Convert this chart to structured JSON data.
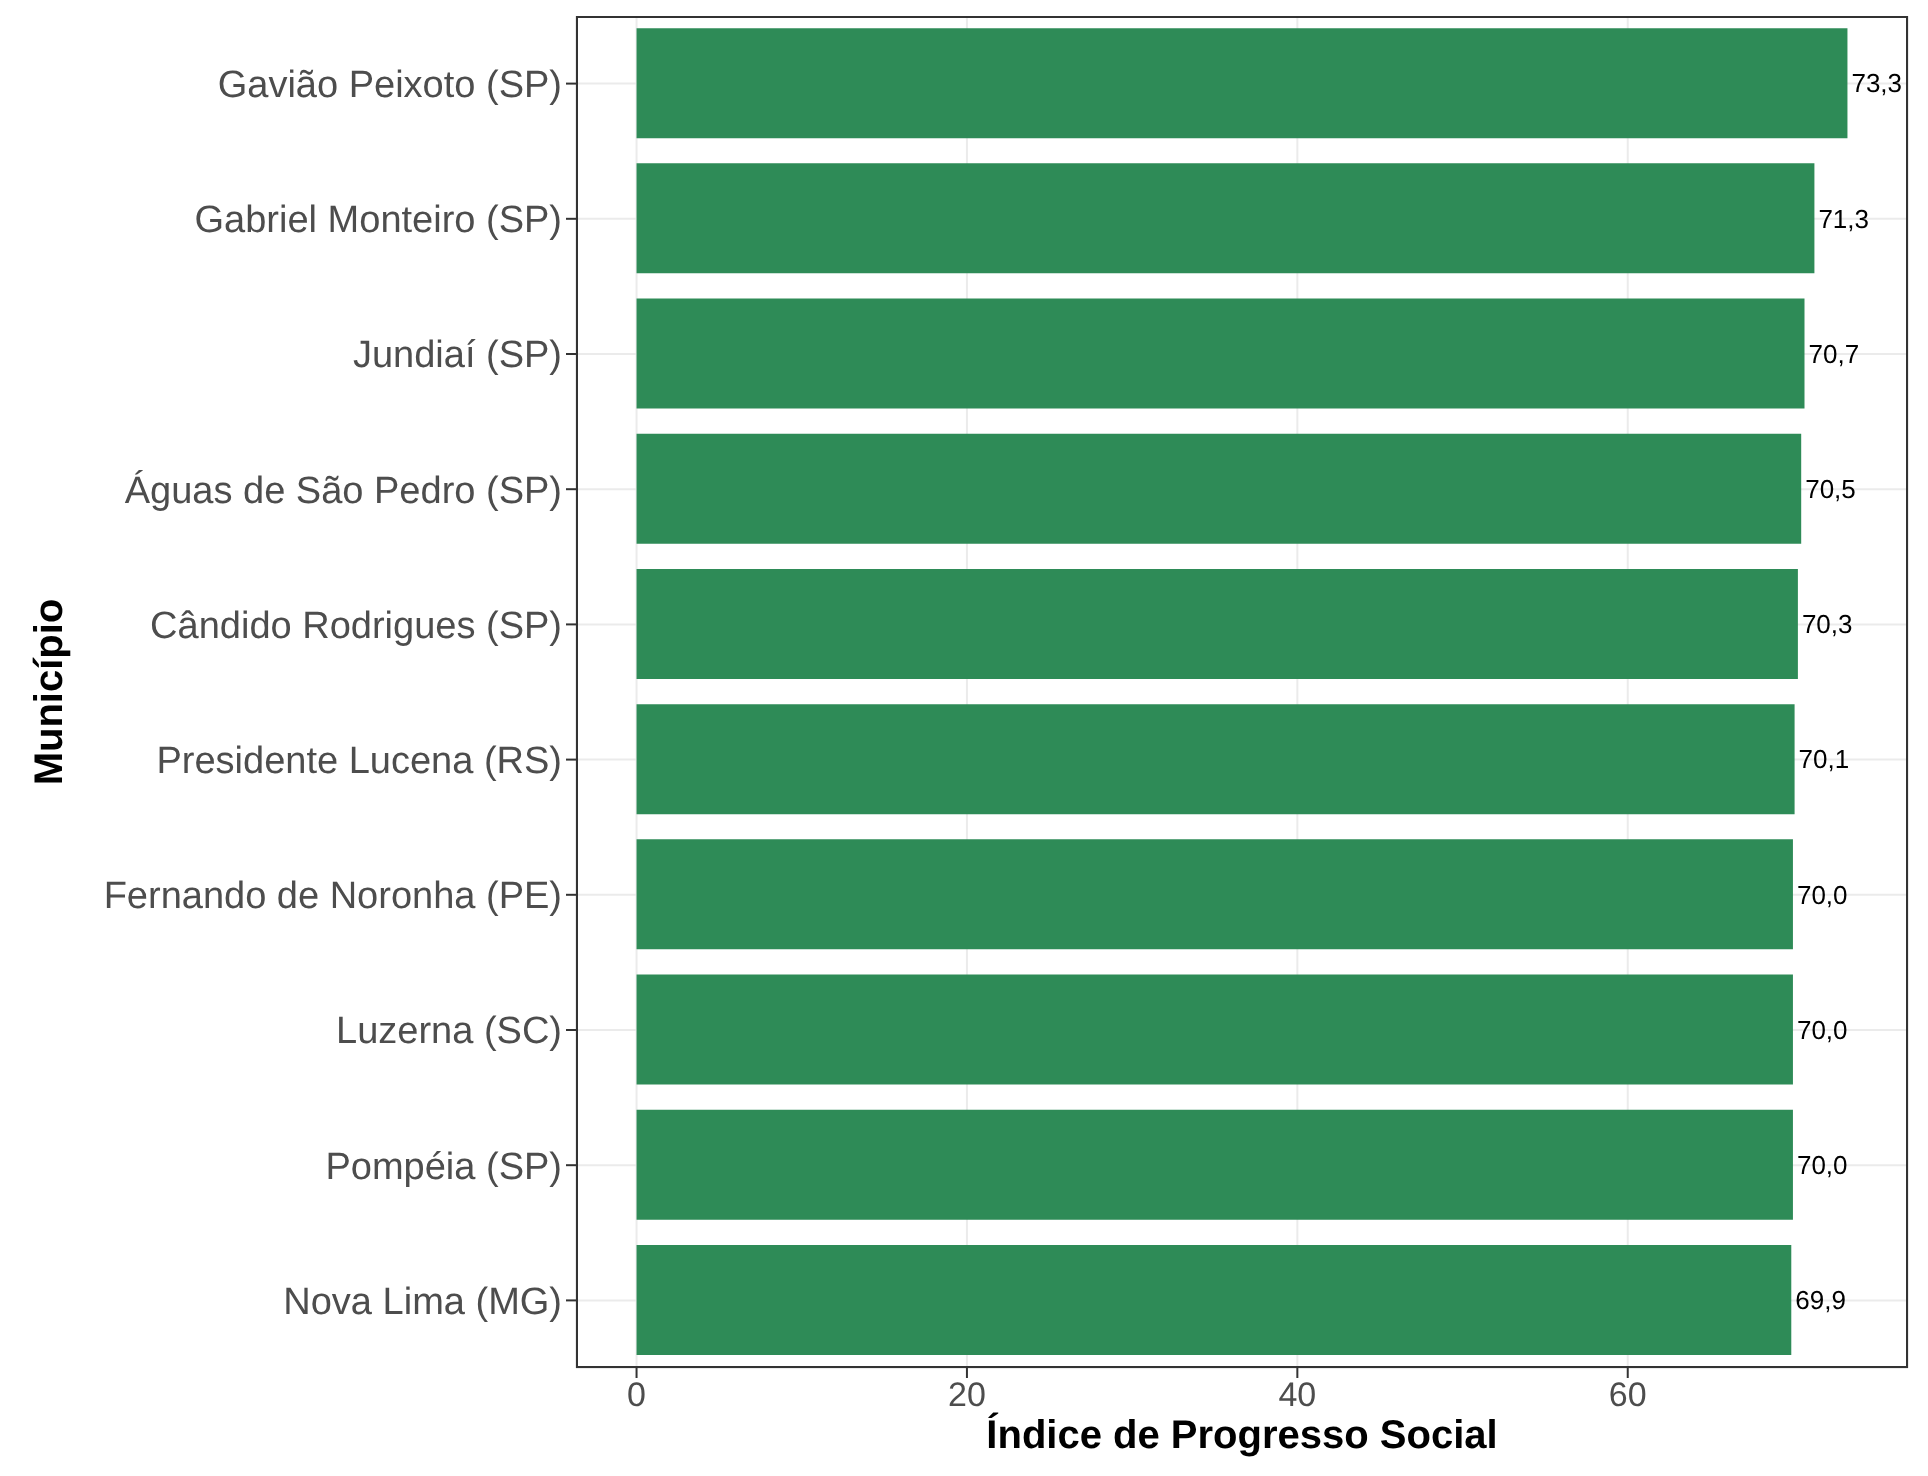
{
  "chart_data": {
    "type": "bar",
    "orientation": "horizontal",
    "xlabel": "Índice de Progresso Social",
    "ylabel": "Município",
    "categories": [
      "Gavião Peixoto (SP)",
      "Gabriel Monteiro (SP)",
      "Jundiaí (SP)",
      "Águas de São Pedro (SP)",
      "Cândido Rodrigues (SP)",
      "Presidente Lucena (RS)",
      "Fernando de Noronha (PE)",
      "Luzerna (SC)",
      "Pompéia (SP)",
      "Nova Lima (MG)"
    ],
    "values": [
      73.3,
      71.3,
      70.7,
      70.5,
      70.3,
      70.1,
      70.0,
      70.0,
      70.0,
      69.9
    ],
    "value_labels": [
      "73,3",
      "71,3",
      "70,7",
      "70,5",
      "70,3",
      "70,1",
      "70,0",
      "70,0",
      "70,0",
      "69,9"
    ],
    "color": "#2e8b57",
    "xlim": [
      -3.665,
      76.965
    ],
    "xticks": [
      0,
      20,
      40,
      60
    ],
    "grid": true
  }
}
